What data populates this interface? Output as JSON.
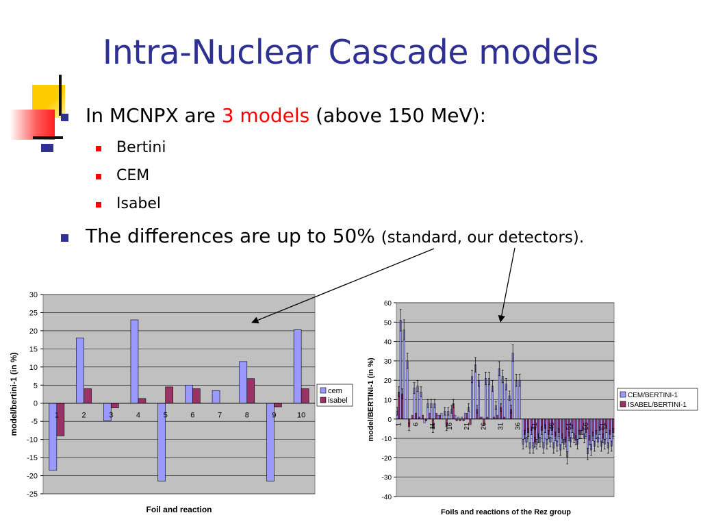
{
  "slide": {
    "title": "Intra-Nuclear Cascade models",
    "bullets": {
      "b1_pre": "In MCNPX are ",
      "b1_red": "3 models",
      "b1_post": " (above 150 MeV):",
      "sub": [
        "Bertini",
        "CEM",
        "Isabel"
      ],
      "b2_main": "The differences are up to 50% ",
      "b2_small": "(standard, our detectors)."
    },
    "colors": {
      "title": "#2e3192",
      "accent": "#ff0000",
      "series_a": "#9999ff",
      "series_b": "#993366",
      "plot_bg": "#c0c0c0"
    }
  },
  "chart_data": [
    {
      "type": "bar",
      "title": "",
      "xlabel": "Foil and reaction",
      "ylabel": "model/bertini-1 (in %)",
      "ylim": [
        -25,
        30
      ],
      "yticks": [
        "30",
        "25",
        "20",
        "15",
        "10",
        "5",
        "0",
        "-5",
        "-10",
        "-15",
        "-20",
        "-25"
      ],
      "categories": [
        "1",
        "2",
        "3",
        "4",
        "5",
        "6",
        "7",
        "8",
        "9",
        "10"
      ],
      "series": [
        {
          "name": "cem",
          "values": [
            -18.5,
            18.0,
            -4.8,
            23.0,
            -21.5,
            5.0,
            3.5,
            11.5,
            -21.5,
            20.3
          ]
        },
        {
          "name": "isabel",
          "values": [
            -9.0,
            4.0,
            -1.3,
            1.3,
            4.5,
            4.0,
            0,
            6.8,
            -1.0,
            4.0
          ]
        }
      ],
      "legend": "right",
      "grid": true
    },
    {
      "type": "bar",
      "title": "",
      "xlabel": "Foils and reactions of the Rez group",
      "ylabel": "model/BERTINI-1 (in %)",
      "ylim": [
        -40,
        60
      ],
      "yticks": [
        "60",
        "50",
        "40",
        "30",
        "20",
        "10",
        "0",
        "-10",
        "-20",
        "-30",
        "-40"
      ],
      "tick_labels": [
        "1",
        "6",
        "11",
        "16",
        "21",
        "26",
        "31",
        "36",
        "41",
        "46",
        "51",
        "56",
        "61"
      ],
      "n_categories": 64,
      "series": [
        {
          "name": "CEM/BERTINI-1",
          "values": [
            4,
            51,
            46,
            30,
            0,
            16,
            17,
            14,
            -2,
            8,
            8,
            8,
            2,
            3,
            4,
            4,
            5,
            2,
            1,
            1,
            3,
            6,
            22,
            28,
            20,
            1,
            21,
            21,
            17,
            7,
            26,
            22,
            18,
            12,
            34,
            20,
            20,
            -13,
            -12,
            -15,
            -15,
            -13,
            -12,
            -15,
            -13,
            -12,
            -15,
            -14,
            -16,
            -13,
            -20,
            -12,
            -10,
            -13,
            -8,
            -10,
            -18,
            -16,
            -14,
            -12,
            -14,
            -13,
            -15,
            -14
          ]
        },
        {
          "name": "ISABEL/BERTINI-1",
          "values": [
            14,
            13,
            0,
            -4,
            2,
            3,
            1,
            2,
            -1,
            3,
            -5,
            3,
            2,
            0,
            -4,
            0,
            8,
            -1,
            -1,
            -1,
            3,
            -3,
            0,
            5,
            1,
            -3,
            1,
            0,
            1,
            2,
            6,
            1,
            0,
            5,
            0,
            0,
            0,
            -8,
            -7,
            -6,
            -12,
            -10,
            -6,
            -5,
            -8,
            -6,
            -9,
            -7,
            -10,
            -12,
            -9,
            -5,
            -11,
            -8,
            -6,
            -7,
            -11,
            -9,
            -8,
            -6,
            -10,
            -5,
            -8,
            -7
          ]
        }
      ],
      "legend": "right",
      "grid": true,
      "error_bars": true
    }
  ]
}
